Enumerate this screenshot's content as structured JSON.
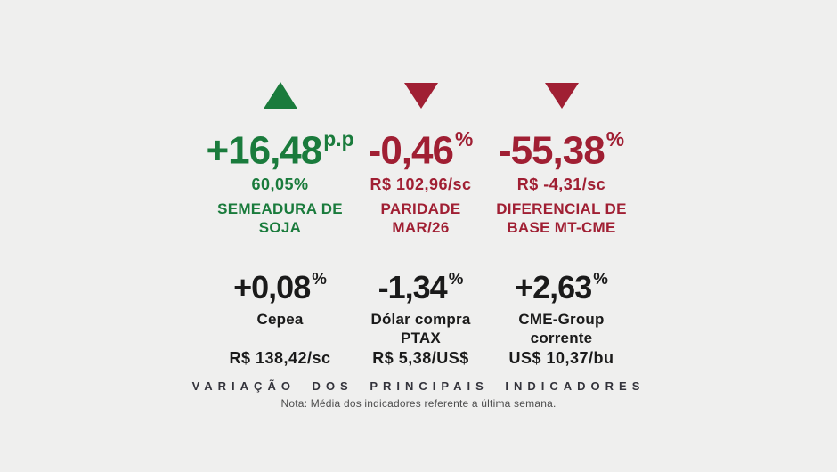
{
  "colors": {
    "background": "#efefee",
    "green": "#1a7b3c",
    "red": "#a01f33",
    "black": "#1a1a1a",
    "title": "#33333b",
    "note": "#4e4e4e"
  },
  "top_indicators": [
    {
      "direction": "up",
      "color": "green",
      "change": "+16,48",
      "change_unit": "p.p",
      "value": "60,05%",
      "label": "SEMEADURA DE\nSOJA"
    },
    {
      "direction": "down",
      "color": "red",
      "change": "-0,46",
      "change_unit": "%",
      "value": "R$ 102,96/sc",
      "label": "PARIDADE\nMAR/26"
    },
    {
      "direction": "down",
      "color": "red",
      "change": "-55,38",
      "change_unit": "%",
      "value": "R$ -4,31/sc",
      "label": "DIFERENCIAL DE\nBASE MT-CME"
    }
  ],
  "bottom_indicators": [
    {
      "change": "+0,08",
      "change_unit": "%",
      "label": "Cepea",
      "value": "R$ 138,42/sc"
    },
    {
      "change": "-1,34",
      "change_unit": "%",
      "label": "Dólar compra\nPTAX",
      "value": "R$ 5,38/US$"
    },
    {
      "change": "+2,63",
      "change_unit": "%",
      "label": "CME-Group\ncorrente",
      "value": "US$ 10,37/bu"
    }
  ],
  "footer": {
    "title": "VARIAÇÃO DOS PRINCIPAIS INDICADORES",
    "note": "Nota: Média dos indicadores referente a última semana."
  },
  "chart_data": {
    "type": "table",
    "title": "VARIAÇÃO DOS PRINCIPAIS INDICADORES",
    "note": "Nota: Média dos indicadores referente a última semana.",
    "indicators": [
      {
        "name": "Semeadura de soja",
        "change": 16.48,
        "change_unit": "p.p",
        "direction": "up",
        "current_value": "60,05%"
      },
      {
        "name": "Paridade Mar/26",
        "change": -0.46,
        "change_unit": "%",
        "direction": "down",
        "current_value": "R$ 102,96/sc"
      },
      {
        "name": "Diferencial de base MT-CME",
        "change": -55.38,
        "change_unit": "%",
        "direction": "down",
        "current_value": "R$ -4,31/sc"
      },
      {
        "name": "Cepea",
        "change": 0.08,
        "change_unit": "%",
        "current_value": "R$ 138,42/sc"
      },
      {
        "name": "Dólar compra PTAX",
        "change": -1.34,
        "change_unit": "%",
        "current_value": "R$ 5,38/US$"
      },
      {
        "name": "CME-Group corrente",
        "change": 2.63,
        "change_unit": "%",
        "current_value": "US$ 10,37/bu"
      }
    ]
  }
}
